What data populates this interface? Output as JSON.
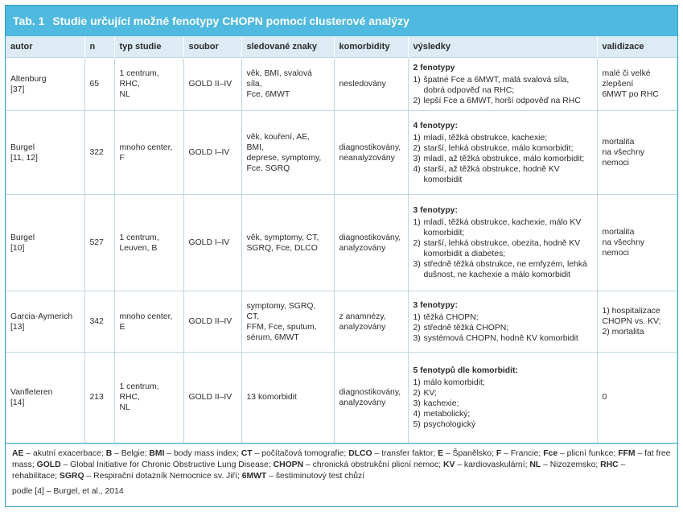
{
  "table": {
    "label": "Tab. 1",
    "title": "Studie určující možné fenotypy CHOPN pomocí clusterové analýzy",
    "headers": [
      "autor",
      "n",
      "typ studie",
      "soubor",
      "sledované znaky",
      "komorbidity",
      "výsledky",
      "validizace"
    ],
    "rows": [
      {
        "autor": [
          "Altenburg",
          "[37]"
        ],
        "n": "65",
        "typ": [
          "1 centrum,",
          "RHC,",
          "NL"
        ],
        "soubor": "GOLD II–IV",
        "znaky": [
          "věk, BMI, svalová síla,",
          "Fce, 6MWT"
        ],
        "komorbidity": [
          "nesledovány"
        ],
        "vysledky_head": "2 fenotypy",
        "vysledky": [
          {
            "n": "1)",
            "t": "špatné Fce a 6MWT, malá svalová síla, dobrá odpověď na RHC;"
          },
          {
            "n": "2)",
            "t": "lepší Fce a 6MWT, horší odpověď na RHC"
          }
        ],
        "validizace": [
          "malé či velké",
          "zlepšení",
          "6MWT po RHC"
        ]
      },
      {
        "autor": [
          "Burgel",
          "[11, 12]"
        ],
        "n": "322",
        "typ": [
          "mnoho center,",
          "F"
        ],
        "soubor": "GOLD I–IV",
        "znaky": [
          "věk, kouření, AE, BMI,",
          "deprese, symptomy,",
          "Fce, SGRQ"
        ],
        "komorbidity": [
          "diagnostikovány,",
          "neanalyzovány"
        ],
        "vysledky_head": "4 fenotypy:",
        "vysledky": [
          {
            "n": "1)",
            "t": "mladí, těžká obstrukce, kachexie;"
          },
          {
            "n": "2)",
            "t": "starší, lehká obstrukce, málo komorbidit;"
          },
          {
            "n": "3)",
            "t": "mladí, až těžká obstrukce, málo komorbidit;"
          },
          {
            "n": "4)",
            "t": "starší, až těžká obstrukce, hodně KV komorbidit"
          }
        ],
        "validizace": [
          "mortalita",
          "na všechny",
          "nemoci"
        ]
      },
      {
        "autor": [
          "Burgel",
          "[10]"
        ],
        "n": "527",
        "typ": [
          "1 centrum,",
          "Leuven, B"
        ],
        "soubor": "GOLD I–IV",
        "znaky": [
          "věk, symptomy, CT,",
          "SGRQ, Fce, DLCO"
        ],
        "komorbidity": [
          "diagnostikovány,",
          "analyzovány"
        ],
        "vysledky_head": "3 fenotypy:",
        "vysledky": [
          {
            "n": "1)",
            "t": "mladí, těžká obstrukce, kachexie, málo KV komorbidit;"
          },
          {
            "n": "2)",
            "t": "starší, lehká obstrukce, obezita, hodně KV komorbidit a diabetes;"
          },
          {
            "n": "3)",
            "t": "středně těžká obstrukce, ne emfyzém, lehká dušnost, ne kachexie a málo komorbidit"
          }
        ],
        "validizace": [
          "mortalita",
          "na všechny",
          "nemoci"
        ]
      },
      {
        "autor": [
          "Garcia-Aymerich",
          "[13]"
        ],
        "n": "342",
        "typ": [
          "mnoho center,",
          "E"
        ],
        "soubor": "GOLD II–IV",
        "znaky": [
          "symptomy, SGRQ, CT,",
          "FFM, Fce, sputum,",
          "sérum, 6MWT"
        ],
        "komorbidity": [
          "z anamnézy,",
          "analyzovány"
        ],
        "vysledky_head": "3 fenotypy:",
        "vysledky": [
          {
            "n": "1)",
            "t": "těžká CHOPN;"
          },
          {
            "n": "2)",
            "t": "středně těžká CHOPN;"
          },
          {
            "n": "3)",
            "t": "systémová CHOPN, hodně KV komorbidit"
          }
        ],
        "validizace": [
          "1) hospitalizace",
          "CHOPN vs. KV;",
          "2) mortalita"
        ]
      },
      {
        "autor": [
          "Vanfleteren",
          "[14]"
        ],
        "n": "213",
        "typ": [
          "1 centrum,",
          "RHC,",
          "NL"
        ],
        "soubor": "GOLD II–IV",
        "znaky": [
          "13 komorbidit"
        ],
        "komorbidity": [
          "diagnostikovány,",
          "analyzovány"
        ],
        "vysledky_head": "5 fenotypů dle komorbidit:",
        "vysledky": [
          {
            "n": "1)",
            "t": "málo komorbidit;"
          },
          {
            "n": "2)",
            "t": "KV;"
          },
          {
            "n": "3)",
            "t": "kachexie;"
          },
          {
            "n": "4)",
            "t": "metabolický;"
          },
          {
            "n": "5)",
            "t": "psychologický"
          }
        ],
        "validizace": [
          "0"
        ]
      }
    ],
    "footnote": [
      {
        "b": "AE",
        "t": " – akutní exacerbace; "
      },
      {
        "b": "B",
        "t": " – Belgie; "
      },
      {
        "b": "BMI",
        "t": " – body mass index; "
      },
      {
        "b": "CT",
        "t": " – počítačová tomografie; "
      },
      {
        "b": "DLCO",
        "t": " – transfer faktor; "
      },
      {
        "b": "E",
        "t": " – Španělsko; "
      },
      {
        "b": "F",
        "t": " – Francie; "
      },
      {
        "b": "Fce",
        "t": " – plicní funkce; "
      },
      {
        "b": "FFM",
        "t": " – fat free mass; "
      },
      {
        "b": "GOLD",
        "t": " – Global Initiative for Chronic Obstructive Lung Disease; "
      },
      {
        "b": "CHOPN",
        "t": " – chronická obstrukční plicní nemoc; "
      },
      {
        "b": "KV",
        "t": " – kardiovaskulární; "
      },
      {
        "b": "NL",
        "t": " – Nizozemsko; "
      },
      {
        "b": "RHC",
        "t": " – rehabilitace; "
      },
      {
        "b": "SGRQ",
        "t": " – Respirační dotazník Nemocnice sv. Jiří; "
      },
      {
        "b": "6MWT",
        "t": " – šestiminutový test chůzí"
      }
    ],
    "source": "podle [4] – Burgel, et al., 2014"
  }
}
